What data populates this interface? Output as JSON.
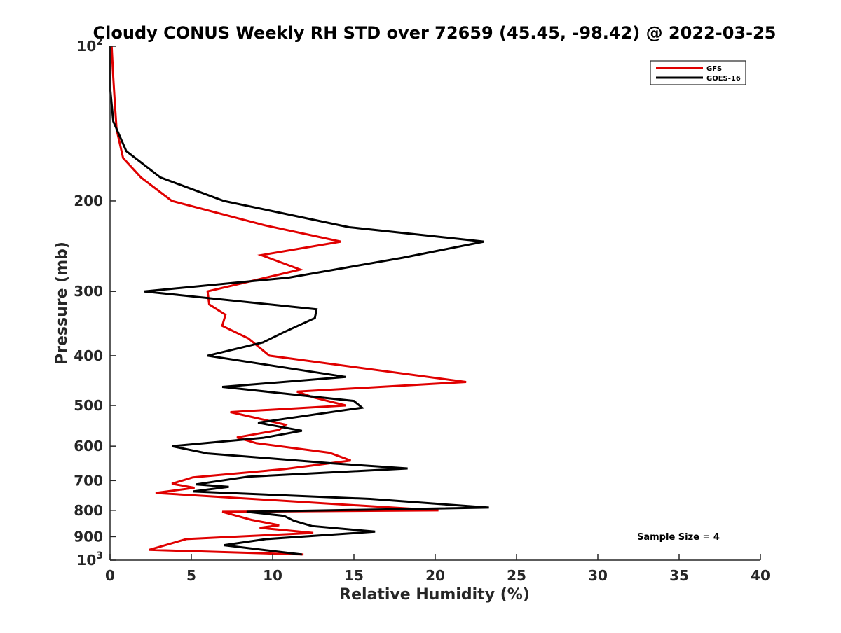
{
  "chart_data": {
    "type": "line",
    "title": "Cloudy CONUS Weekly RH STD over 72659 (45.45, -98.42) @ 2022-03-25",
    "xlabel": "Relative Humidity (%)",
    "ylabel": "Pressure (mb)",
    "xlim": [
      0,
      40
    ],
    "ylim": [
      100,
      1000
    ],
    "y_scale": "log",
    "y_reversed": true,
    "x_ticks": [
      0,
      5,
      10,
      15,
      20,
      25,
      30,
      35,
      40
    ],
    "x_tick_labels": [
      "0",
      "5",
      "10",
      "15",
      "20",
      "25",
      "30",
      "35",
      "40"
    ],
    "y_ticks": [
      100,
      200,
      300,
      400,
      500,
      600,
      700,
      800,
      900,
      1000
    ],
    "y_tick_labels": [
      "10^2",
      "200",
      "300",
      "400",
      "500",
      "600",
      "700",
      "800",
      "900",
      "10^3"
    ],
    "grid": false,
    "legend_position": "top-right",
    "annotation": "Sample Size = 4",
    "series": [
      {
        "name": "GFS",
        "color": "#e00000",
        "points": [
          [
            0.1,
            100
          ],
          [
            0.2,
            115
          ],
          [
            0.3,
            130
          ],
          [
            0.4,
            145
          ],
          [
            0.8,
            165
          ],
          [
            1.9,
            180
          ],
          [
            3.8,
            200
          ],
          [
            9.5,
            223
          ],
          [
            14.2,
            240
          ],
          [
            9.3,
            255
          ],
          [
            11.7,
            272
          ],
          [
            6.0,
            300
          ],
          [
            6.1,
            318
          ],
          [
            7.1,
            333
          ],
          [
            6.9,
            350
          ],
          [
            8.5,
            370
          ],
          [
            9.8,
            400
          ],
          [
            21.9,
            450
          ],
          [
            11.5,
            470
          ],
          [
            12.5,
            482
          ],
          [
            14.5,
            500
          ],
          [
            7.4,
            515
          ],
          [
            10.8,
            545
          ],
          [
            10.4,
            558
          ],
          [
            7.8,
            577
          ],
          [
            9.0,
            592
          ],
          [
            13.5,
            618
          ],
          [
            14.8,
            640
          ],
          [
            10.7,
            665
          ],
          [
            5.1,
            690
          ],
          [
            3.8,
            710
          ],
          [
            5.2,
            723
          ],
          [
            2.8,
            740
          ],
          [
            20.2,
            800
          ],
          [
            6.9,
            805
          ],
          [
            8.7,
            835
          ],
          [
            10.4,
            855
          ],
          [
            9.2,
            865
          ],
          [
            12.5,
            885
          ],
          [
            4.7,
            910
          ],
          [
            2.4,
            955
          ],
          [
            11.9,
            975
          ]
        ]
      },
      {
        "name": "GOES-16",
        "color": "#000000",
        "points": [
          [
            0.0,
            100
          ],
          [
            0.0,
            120
          ],
          [
            0.2,
            140
          ],
          [
            1.0,
            160
          ],
          [
            3.1,
            180
          ],
          [
            7.0,
            200
          ],
          [
            14.7,
            225
          ],
          [
            23.0,
            240
          ],
          [
            18.0,
            258
          ],
          [
            11.0,
            282
          ],
          [
            2.1,
            300
          ],
          [
            12.7,
            325
          ],
          [
            12.6,
            338
          ],
          [
            10.7,
            360
          ],
          [
            9.4,
            377
          ],
          [
            6.0,
            400
          ],
          [
            14.5,
            440
          ],
          [
            6.9,
            460
          ],
          [
            15.0,
            490
          ],
          [
            15.5,
            505
          ],
          [
            9.1,
            540
          ],
          [
            11.8,
            560
          ],
          [
            9.4,
            578
          ],
          [
            3.8,
            600
          ],
          [
            6.0,
            620
          ],
          [
            13.7,
            648
          ],
          [
            18.3,
            663
          ],
          [
            8.5,
            688
          ],
          [
            5.3,
            712
          ],
          [
            7.3,
            720
          ],
          [
            5.1,
            735
          ],
          [
            16.0,
            760
          ],
          [
            23.3,
            790
          ],
          [
            8.4,
            805
          ],
          [
            10.7,
            820
          ],
          [
            11.3,
            838
          ],
          [
            12.4,
            858
          ],
          [
            16.3,
            880
          ],
          [
            9.6,
            910
          ],
          [
            7.0,
            935
          ],
          [
            11.8,
            975
          ]
        ]
      }
    ]
  }
}
